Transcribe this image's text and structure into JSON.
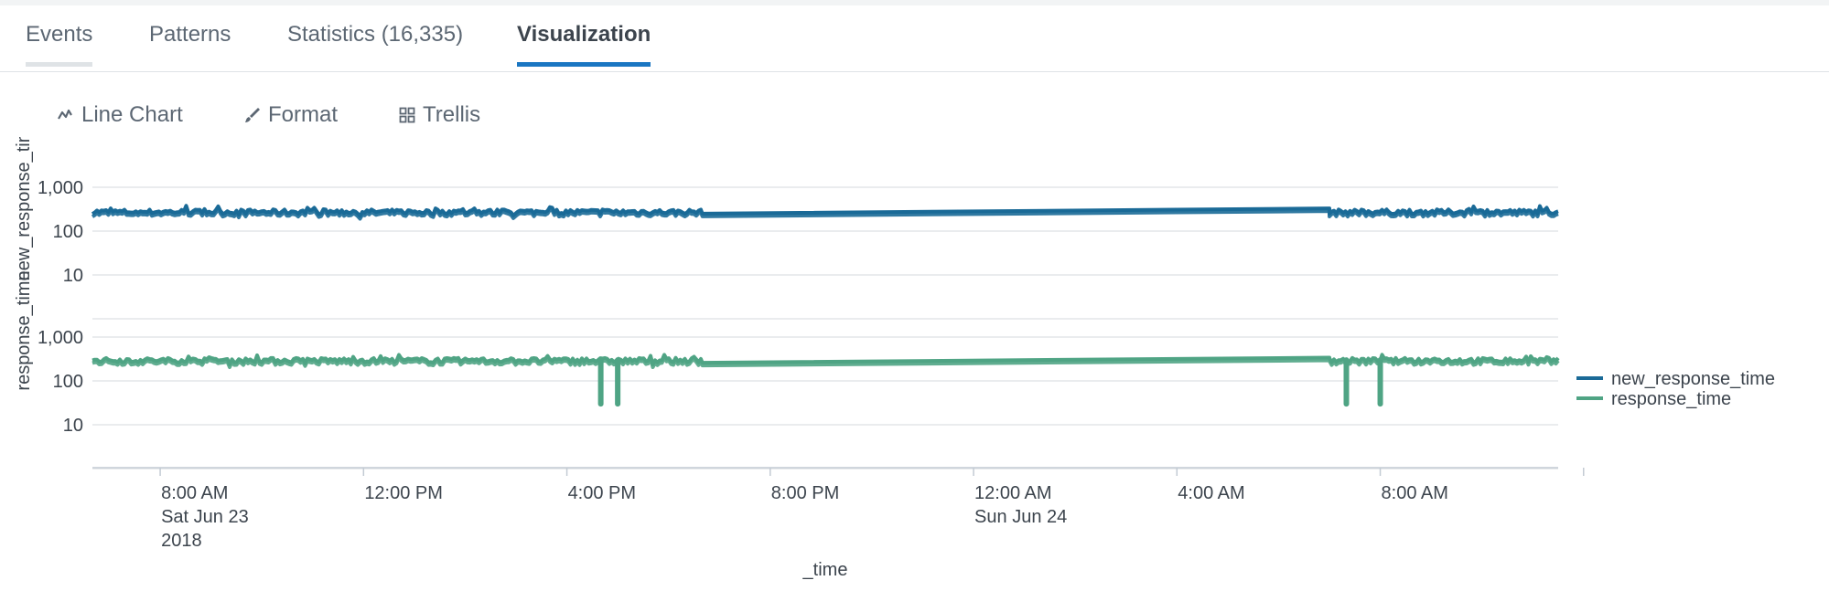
{
  "tabs": [
    {
      "label": "Events"
    },
    {
      "label": "Patterns"
    },
    {
      "label": "Statistics (16,335)"
    },
    {
      "label": "Visualization"
    }
  ],
  "toolbar": {
    "line_chart": {
      "label": "Line Chart",
      "icon": "line-chart-icon"
    },
    "format": {
      "label": "Format",
      "icon": "paintbrush-icon"
    },
    "trellis": {
      "label": "Trellis",
      "icon": "grid-icon"
    }
  },
  "colors": {
    "new_response_time": "#1a6a97",
    "response_time": "#4fa484",
    "active_tab": "#1a76c2",
    "gridline": "#e3e6e8"
  },
  "chart_data": {
    "type": "line",
    "layout": "two stacked panels sharing x axis",
    "x_axis": {
      "label": "_time",
      "range": [
        "2018-06-23T06:40",
        "2018-06-24T11:30"
      ],
      "ticks": [
        {
          "time": "2018-06-23T08:00",
          "lines": [
            "8:00 AM",
            "Sat Jun 23",
            "2018"
          ]
        },
        {
          "time": "2018-06-23T12:00",
          "lines": [
            "12:00 PM"
          ]
        },
        {
          "time": "2018-06-23T16:00",
          "lines": [
            "4:00 PM"
          ]
        },
        {
          "time": "2018-06-23T20:00",
          "lines": [
            "8:00 PM"
          ]
        },
        {
          "time": "2018-06-24T00:00",
          "lines": [
            "12:00 AM",
            "Sun Jun 24"
          ]
        },
        {
          "time": "2018-06-24T04:00",
          "lines": [
            "4:00 AM"
          ]
        },
        {
          "time": "2018-06-24T08:00",
          "lines": [
            "8:00 AM"
          ]
        }
      ],
      "minor_tick_times": [
        "2018-06-24T12:00"
      ]
    },
    "panels": [
      {
        "ylabel": "new_response_time",
        "scale": "log",
        "ylim": [
          1,
          1000
        ],
        "y_ticks": [
          {
            "value": 10,
            "label": "10"
          },
          {
            "value": 100,
            "label": "100"
          },
          {
            "value": 1000,
            "label": "1,000"
          }
        ],
        "series": "new_response_time"
      },
      {
        "ylabel": "response_time",
        "scale": "log",
        "ylim": [
          1,
          1000
        ],
        "y_ticks": [
          {
            "value": 10,
            "label": "10"
          },
          {
            "value": 100,
            "label": "100"
          },
          {
            "value": 1000,
            "label": "1,000"
          }
        ],
        "series": "response_time"
      }
    ],
    "series": [
      {
        "name": "new_response_time",
        "typical_value": 280,
        "noise_range": [
          220,
          380
        ],
        "segments": [
          {
            "start": "2018-06-23T06:40",
            "end": "2018-06-23T18:40",
            "value": 280
          },
          {
            "start": "2018-06-23T18:40",
            "end": "2018-06-24T07:00",
            "from_value": 250,
            "to_value": 330,
            "gap_line": true
          },
          {
            "start": "2018-06-24T07:00",
            "end": "2018-06-24T11:30",
            "value": 280
          }
        ],
        "dips": []
      },
      {
        "name": "response_time",
        "typical_value": 300,
        "noise_range": [
          230,
          400
        ],
        "segments": [
          {
            "start": "2018-06-23T06:40",
            "end": "2018-06-23T18:40",
            "value": 300
          },
          {
            "start": "2018-06-23T18:40",
            "end": "2018-06-24T07:00",
            "from_value": 260,
            "to_value": 340,
            "gap_line": true
          },
          {
            "start": "2018-06-24T07:00",
            "end": "2018-06-24T11:30",
            "value": 300
          }
        ],
        "dips": [
          {
            "time": "2018-06-23T16:40",
            "min_value": 30
          },
          {
            "time": "2018-06-23T17:00",
            "min_value": 30
          },
          {
            "time": "2018-06-24T07:20",
            "min_value": 30
          },
          {
            "time": "2018-06-24T08:00",
            "min_value": 30
          }
        ]
      }
    ],
    "legend": {
      "placement": "right",
      "entries": [
        "new_response_time",
        "response_time"
      ]
    },
    "grid": true
  }
}
